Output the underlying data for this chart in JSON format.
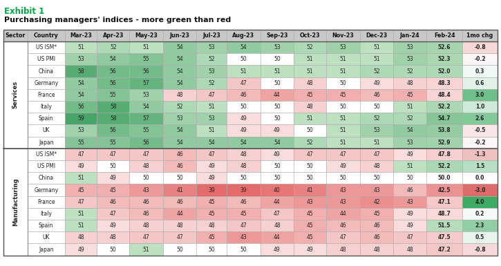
{
  "title1": "Exhibit 1",
  "title2": "Purchasing managers' indices - more green than red",
  "col_labels": [
    "Sector",
    "Country",
    "Mar-23",
    "Apr-23",
    "May-23",
    "Jun-23",
    "Jul-23",
    "Aug-23",
    "Sep-23",
    "Oct-23",
    "Nov-23",
    "Dec-23",
    "Jan-24",
    "Feb-24",
    "1mo chg"
  ],
  "sectors": [
    "Services",
    "Manufacturing"
  ],
  "sector_countries": {
    "Services": [
      "US ISM*",
      "US PMI",
      "China",
      "Germany",
      "France",
      "Italy",
      "Spain",
      "UK",
      "Japan"
    ],
    "Manufacturing": [
      "US ISM*",
      "US PMI",
      "China",
      "Germany",
      "France",
      "Italy",
      "Spain",
      "UK",
      "Japan"
    ]
  },
  "data": {
    "Services": {
      "US ISM*": [
        51,
        52,
        51,
        54,
        53,
        54,
        53,
        52,
        53,
        51,
        53,
        52.6,
        -0.8
      ],
      "US PMI": [
        53,
        54,
        55,
        54,
        52,
        50,
        50,
        51,
        51,
        51,
        53,
        52.3,
        -0.2
      ],
      "China": [
        58,
        56,
        56,
        54,
        53,
        51,
        51,
        51,
        51,
        52,
        52,
        52.0,
        0.3
      ],
      "Germany": [
        54,
        56,
        57,
        54,
        52,
        47,
        50,
        48,
        50,
        49,
        48,
        48.3,
        0.6
      ],
      "France": [
        54,
        55,
        53,
        48,
        47,
        46,
        44,
        45,
        45,
        46,
        45,
        48.4,
        3.0
      ],
      "Italy": [
        56,
        58,
        54,
        52,
        51,
        50,
        50,
        48,
        50,
        50,
        51,
        52.2,
        1.0
      ],
      "Spain": [
        59,
        58,
        57,
        53,
        53,
        49,
        50,
        51,
        51,
        52,
        52,
        54.7,
        2.6
      ],
      "UK": [
        53,
        56,
        55,
        54,
        51,
        49,
        49,
        50,
        51,
        53,
        54,
        53.8,
        -0.5
      ],
      "Japan": [
        55,
        55,
        56,
        54,
        54,
        54,
        54,
        52,
        51,
        51,
        53,
        52.9,
        -0.2
      ]
    },
    "Manufacturing": {
      "US ISM*": [
        47,
        47,
        47,
        46,
        47,
        48,
        49,
        47,
        47,
        47,
        49,
        47.8,
        -1.3
      ],
      "US PMI": [
        49,
        50,
        48,
        46,
        49,
        48,
        50,
        50,
        49,
        48,
        51,
        52.2,
        1.5
      ],
      "China": [
        51,
        49,
        50,
        50,
        49,
        50,
        50,
        50,
        50,
        50,
        50,
        50.0,
        0.0
      ],
      "Germany": [
        45,
        45,
        43,
        41,
        39,
        39,
        40,
        41,
        43,
        43,
        46,
        42.5,
        -3.0
      ],
      "France": [
        47,
        46,
        46,
        46,
        45,
        46,
        44,
        43,
        43,
        42,
        43,
        47.1,
        4.0
      ],
      "Italy": [
        51,
        47,
        46,
        44,
        45,
        45,
        47,
        45,
        44,
        45,
        49,
        48.7,
        0.2
      ],
      "Spain": [
        51,
        49,
        48,
        48,
        48,
        47,
        48,
        45,
        46,
        46,
        49,
        51.5,
        2.3
      ],
      "UK": [
        48,
        48,
        47,
        47,
        45,
        43,
        44,
        45,
        47,
        46,
        47,
        47.5,
        0.5
      ],
      "Japan": [
        49,
        50,
        51,
        50,
        50,
        50,
        49,
        49,
        48,
        48,
        48,
        47.2,
        -0.8
      ]
    }
  },
  "title1_color": "#00aa44",
  "header_bg": "#c8c8c8",
  "border_color": "#aaaaaa",
  "text_color": "#333333"
}
